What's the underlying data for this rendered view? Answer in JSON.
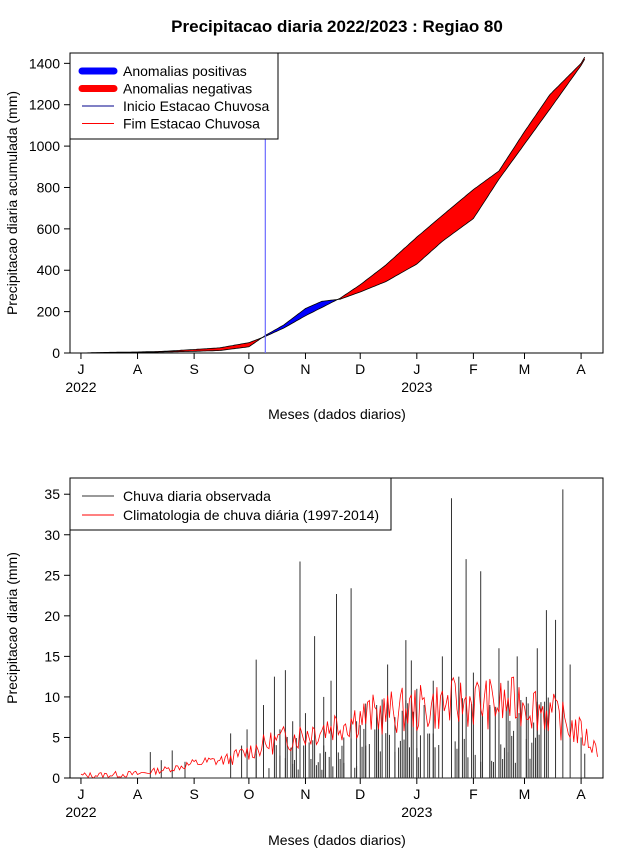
{
  "chart_data": [
    {
      "type": "area",
      "title": "Precipitacao diaria 2022/2023 : Regiao 80",
      "xlabel": "Meses (dados diarios)",
      "ylabel": "Precipitacao diaria acumulada (mm)",
      "ylim": [
        0,
        1450
      ],
      "yticks": [
        0,
        200,
        400,
        600,
        800,
        1000,
        1200,
        1400
      ],
      "xticks": [
        {
          "label": "J",
          "date": "2022-07-01"
        },
        {
          "label": "A",
          "date": "2022-08-01"
        },
        {
          "label": "S",
          "date": "2022-09-01"
        },
        {
          "label": "O",
          "date": "2022-10-01"
        },
        {
          "label": "N",
          "date": "2022-11-01"
        },
        {
          "label": "D",
          "date": "2022-12-01"
        },
        {
          "label": "J",
          "date": "2023-01-01"
        },
        {
          "label": "F",
          "date": "2023-02-01"
        },
        {
          "label": "M",
          "date": "2023-03-01"
        },
        {
          "label": "A",
          "date": "2023-04-01"
        }
      ],
      "year_labels": [
        {
          "label": "2022",
          "date": "2022-07-01"
        },
        {
          "label": "2023",
          "date": "2023-01-01"
        }
      ],
      "xlim": [
        "2022-06-25",
        "2023-04-13"
      ],
      "legend_position": "top-left",
      "legend": [
        {
          "name": "Anomalias positivas",
          "color": "#0000ff",
          "style": "thick"
        },
        {
          "name": "Anomalias negativas",
          "color": "#ff0000",
          "style": "thick"
        },
        {
          "name": "Inicio Estacao Chuvosa",
          "color": "#00008b",
          "style": "thin"
        },
        {
          "name": "Fim Estacao Chuvosa",
          "color": "#ff0000",
          "style": "thin"
        }
      ],
      "onset_date": "2022-10-10",
      "observed": {
        "x": [
          "2022-07-01",
          "2022-07-15",
          "2022-08-01",
          "2022-08-15",
          "2022-09-01",
          "2022-09-15",
          "2022-10-01",
          "2022-10-10",
          "2022-10-20",
          "2022-11-01",
          "2022-11-10",
          "2022-11-20",
          "2022-12-01",
          "2022-12-15",
          "2023-01-01",
          "2023-01-15",
          "2023-02-01",
          "2023-02-15",
          "2023-03-01",
          "2023-03-15",
          "2023-04-01",
          "2023-04-03"
        ],
        "y": [
          0,
          2,
          3,
          5,
          8,
          12,
          30,
          85,
          135,
          215,
          250,
          260,
          295,
          345,
          430,
          540,
          650,
          840,
          1010,
          1180,
          1390,
          1420
        ]
      },
      "climatology": {
        "x": [
          "2022-07-01",
          "2022-07-15",
          "2022-08-01",
          "2022-08-15",
          "2022-09-01",
          "2022-09-15",
          "2022-10-01",
          "2022-10-10",
          "2022-10-20",
          "2022-11-01",
          "2022-11-10",
          "2022-11-20",
          "2022-12-01",
          "2022-12-15",
          "2023-01-01",
          "2023-01-15",
          "2023-02-01",
          "2023-02-15",
          "2023-03-01",
          "2023-03-15",
          "2023-04-01",
          "2023-04-03"
        ],
        "y": [
          0,
          3,
          5,
          8,
          17,
          25,
          50,
          80,
          120,
          180,
          220,
          265,
          330,
          425,
          560,
          665,
          790,
          880,
          1070,
          1250,
          1400,
          1430
        ]
      }
    },
    {
      "type": "bar",
      "xlabel": "Meses (dados diarios)",
      "ylabel": "Precipitacao diaria (mm)",
      "ylim": [
        0,
        37
      ],
      "yticks": [
        0,
        5,
        10,
        15,
        20,
        25,
        30,
        35
      ],
      "xticks": [
        {
          "label": "J",
          "date": "2022-07-01"
        },
        {
          "label": "A",
          "date": "2022-08-01"
        },
        {
          "label": "S",
          "date": "2022-09-01"
        },
        {
          "label": "O",
          "date": "2022-10-01"
        },
        {
          "label": "N",
          "date": "2022-11-01"
        },
        {
          "label": "D",
          "date": "2022-12-01"
        },
        {
          "label": "J",
          "date": "2023-01-01"
        },
        {
          "label": "F",
          "date": "2023-02-01"
        },
        {
          "label": "M",
          "date": "2023-03-01"
        },
        {
          "label": "A",
          "date": "2023-04-01"
        }
      ],
      "year_labels": [
        {
          "label": "2022",
          "date": "2022-07-01"
        },
        {
          "label": "2023",
          "date": "2023-01-01"
        }
      ],
      "xlim": [
        "2022-06-25",
        "2023-04-13"
      ],
      "legend_position": "top-left",
      "legend": [
        {
          "name": "Chuva diaria observada",
          "color": "#333333"
        },
        {
          "name": "Climatologia de chuva diária (1997-2014)",
          "color": "#ff0000"
        }
      ],
      "observed_spikes": [
        {
          "date": "2022-08-08",
          "value": 3.2
        },
        {
          "date": "2022-08-14",
          "value": 2.2
        },
        {
          "date": "2022-08-20",
          "value": 3.4
        },
        {
          "date": "2022-08-27",
          "value": 2.0
        },
        {
          "date": "2022-09-21",
          "value": 5.5
        },
        {
          "date": "2022-09-27",
          "value": 4.0
        },
        {
          "date": "2022-09-30",
          "value": 6.0
        },
        {
          "date": "2022-10-05",
          "value": 14.6
        },
        {
          "date": "2022-10-09",
          "value": 9.0
        },
        {
          "date": "2022-10-15",
          "value": 12.5
        },
        {
          "date": "2022-10-18",
          "value": 6.0
        },
        {
          "date": "2022-10-21",
          "value": 13.3
        },
        {
          "date": "2022-10-25",
          "value": 7.0
        },
        {
          "date": "2022-10-29",
          "value": 26.7
        },
        {
          "date": "2022-11-01",
          "value": 8.0
        },
        {
          "date": "2022-11-06",
          "value": 17.5
        },
        {
          "date": "2022-11-11",
          "value": 10.0
        },
        {
          "date": "2022-11-15",
          "value": 12.0
        },
        {
          "date": "2022-11-18",
          "value": 22.7
        },
        {
          "date": "2022-11-22",
          "value": 5.0
        },
        {
          "date": "2022-11-26",
          "value": 23.4
        },
        {
          "date": "2022-11-29",
          "value": 7.0
        },
        {
          "date": "2022-12-04",
          "value": 4.0
        },
        {
          "date": "2022-12-10",
          "value": 9.0
        },
        {
          "date": "2022-12-16",
          "value": 14.0
        },
        {
          "date": "2022-12-20",
          "value": 7.5
        },
        {
          "date": "2022-12-26",
          "value": 17.0
        },
        {
          "date": "2022-12-29",
          "value": 14.5
        },
        {
          "date": "2023-01-01",
          "value": 11.0
        },
        {
          "date": "2023-01-05",
          "value": 9.0
        },
        {
          "date": "2023-01-10",
          "value": 12.0
        },
        {
          "date": "2023-01-15",
          "value": 15.0
        },
        {
          "date": "2023-01-20",
          "value": 34.5
        },
        {
          "date": "2023-01-24",
          "value": 12.5
        },
        {
          "date": "2023-01-28",
          "value": 27.0
        },
        {
          "date": "2023-02-01",
          "value": 13.0
        },
        {
          "date": "2023-02-05",
          "value": 25.5
        },
        {
          "date": "2023-02-10",
          "value": 9.0
        },
        {
          "date": "2023-02-15",
          "value": 16.0
        },
        {
          "date": "2023-02-20",
          "value": 12.0
        },
        {
          "date": "2023-02-25",
          "value": 15.0
        },
        {
          "date": "2023-03-02",
          "value": 10.0
        },
        {
          "date": "2023-03-08",
          "value": 16.0
        },
        {
          "date": "2023-03-13",
          "value": 20.7
        },
        {
          "date": "2023-03-18",
          "value": 19.5
        },
        {
          "date": "2023-03-22",
          "value": 35.6
        },
        {
          "date": "2023-03-26",
          "value": 14.0
        },
        {
          "date": "2023-04-01",
          "value": 5.0
        },
        {
          "date": "2023-04-03",
          "value": 3.0
        }
      ],
      "observed_base_levels": [
        {
          "start": "2022-12-01",
          "end": "2023-03-15",
          "value": 6.0
        },
        {
          "start": "2022-10-05",
          "end": "2022-12-01",
          "value": 3.0
        }
      ],
      "climatology": {
        "x": [
          "2022-07-01",
          "2022-08-01",
          "2022-08-20",
          "2022-09-01",
          "2022-09-20",
          "2022-10-01",
          "2022-10-15",
          "2022-11-01",
          "2022-11-15",
          "2022-12-01",
          "2022-12-15",
          "2023-01-01",
          "2023-01-15",
          "2023-02-01",
          "2023-02-15",
          "2023-03-01",
          "2023-03-15",
          "2023-04-01",
          "2023-04-10"
        ],
        "y": [
          0.3,
          0.5,
          1.2,
          1.8,
          2.3,
          3.3,
          4.5,
          5.5,
          6.5,
          7.5,
          8.0,
          8.5,
          9.0,
          9.5,
          9.0,
          9.5,
          8.0,
          5.5,
          3.5
        ]
      }
    }
  ]
}
